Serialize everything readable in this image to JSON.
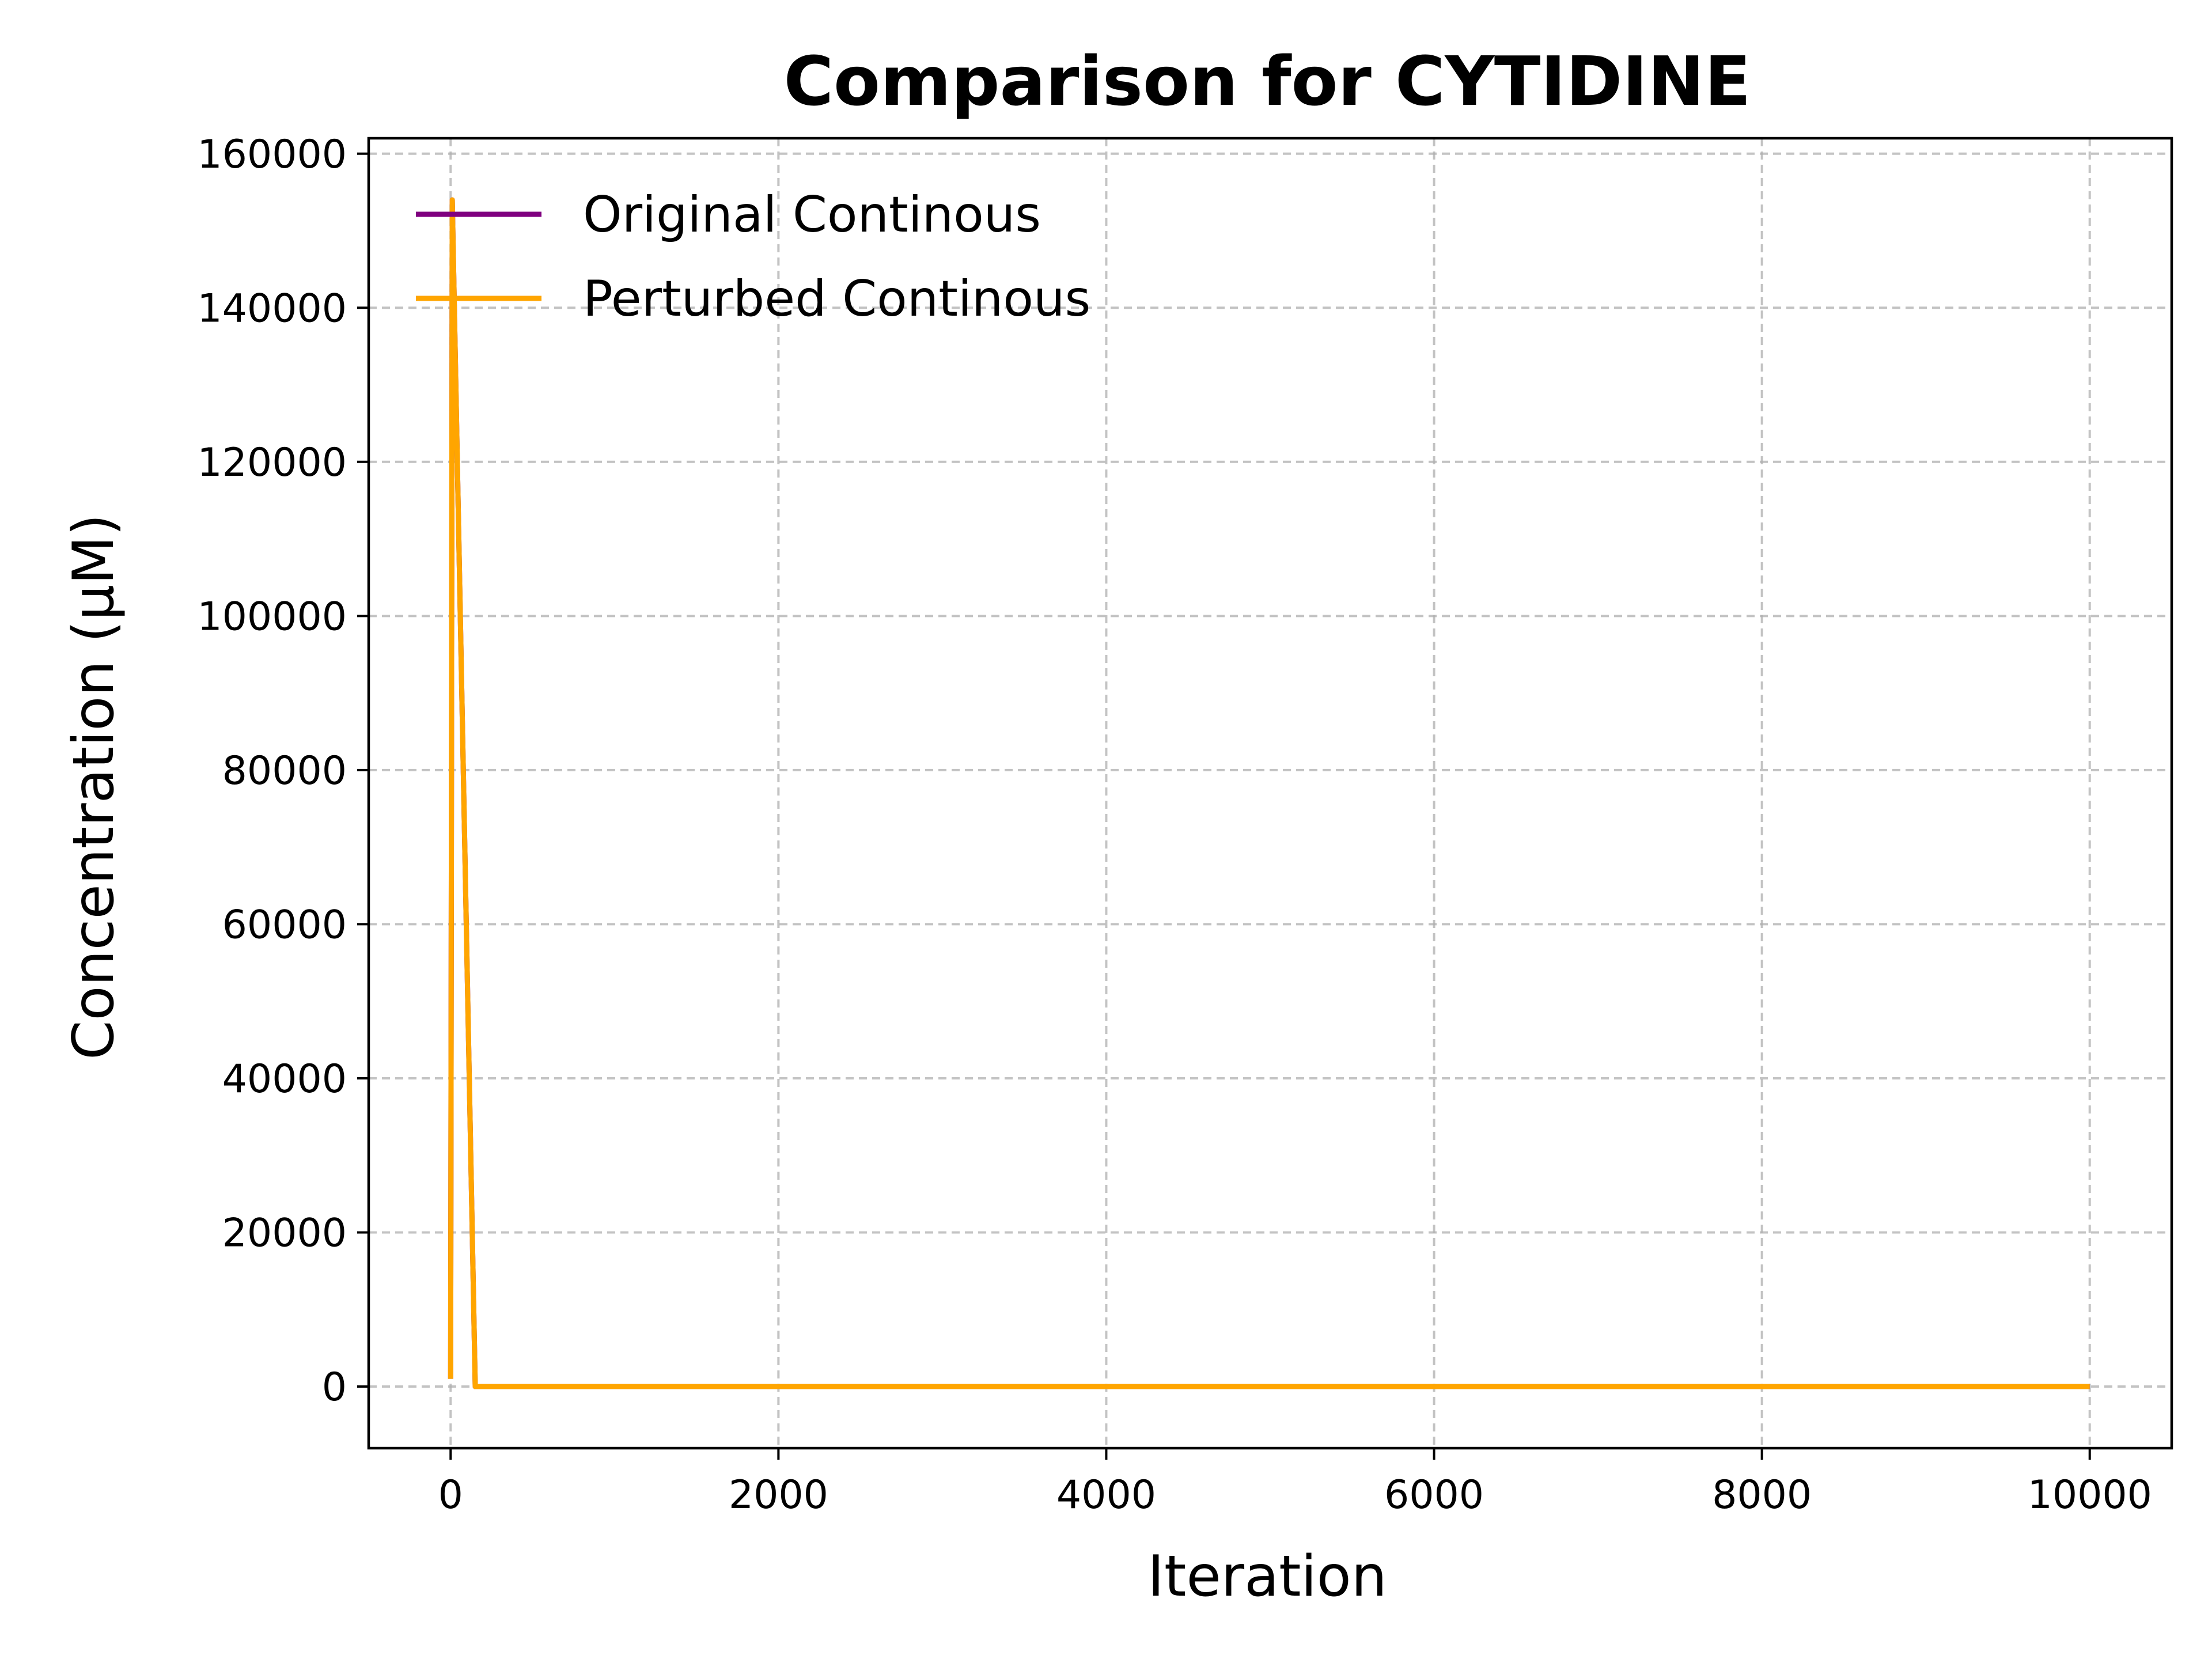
{
  "chart_data": {
    "type": "line",
    "title": "Comparison for CYTIDINE",
    "xlabel": "Iteration",
    "ylabel": "Concentration (μM)",
    "xlim": [
      -500,
      10500
    ],
    "ylim": [
      -8000,
      162000
    ],
    "x_ticks": [
      0,
      2000,
      4000,
      6000,
      8000,
      10000
    ],
    "y_ticks": [
      0,
      20000,
      40000,
      60000,
      80000,
      100000,
      120000,
      140000,
      160000
    ],
    "grid": true,
    "legend_position": "upper-left",
    "series": [
      {
        "name": "Original Continous",
        "color": "#800080",
        "x": [
          0,
          10,
          150,
          10000
        ],
        "y": [
          1000,
          154000,
          0,
          0
        ]
      },
      {
        "name": "Perturbed Continous",
        "color": "#FFA500",
        "x": [
          0,
          10,
          150,
          10000
        ],
        "y": [
          1000,
          154000,
          0,
          0
        ]
      }
    ]
  }
}
